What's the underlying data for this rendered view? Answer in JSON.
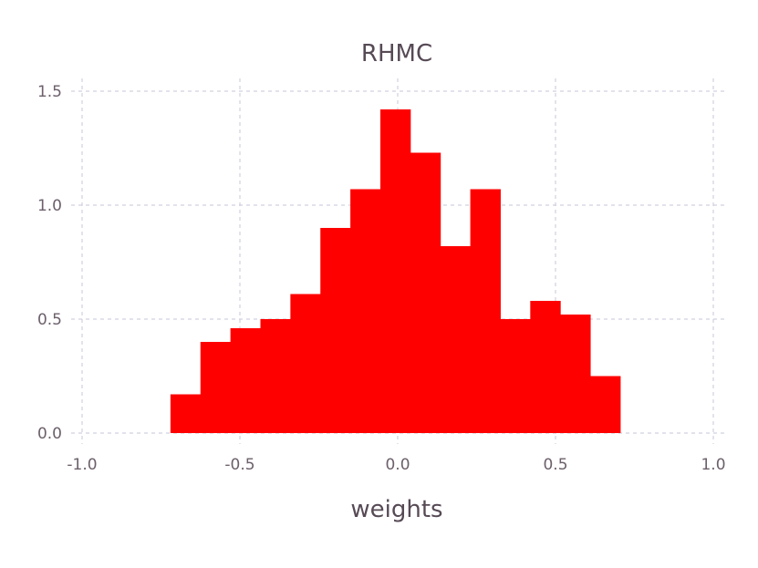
{
  "chart_data": {
    "type": "bar",
    "title": "RHMC",
    "xlabel": "weights",
    "ylabel": "",
    "xlim": [
      -1.0,
      1.0
    ],
    "ylim": [
      0.0,
      1.5
    ],
    "x_ticks": [
      -1.0,
      -0.5,
      0.0,
      0.5,
      1.0
    ],
    "x_tick_labels": [
      "-1.0",
      "-0.5",
      "0.0",
      "0.5",
      "1.0"
    ],
    "y_ticks": [
      0.0,
      0.5,
      1.0,
      1.5
    ],
    "y_tick_labels": [
      "0.0",
      "0.5",
      "1.0",
      "1.5"
    ],
    "grid": true,
    "bar_color": "#ff0000",
    "bin_edges": [
      -0.72,
      -0.625,
      -0.53,
      -0.435,
      -0.34,
      -0.245,
      -0.15,
      -0.055,
      0.04,
      0.135,
      0.23,
      0.325,
      0.42,
      0.515,
      0.61,
      0.705
    ],
    "values": [
      0.17,
      0.4,
      0.46,
      0.5,
      0.61,
      0.9,
      1.07,
      1.42,
      1.23,
      0.82,
      1.07,
      0.5,
      0.58,
      0.52,
      0.25
    ]
  }
}
